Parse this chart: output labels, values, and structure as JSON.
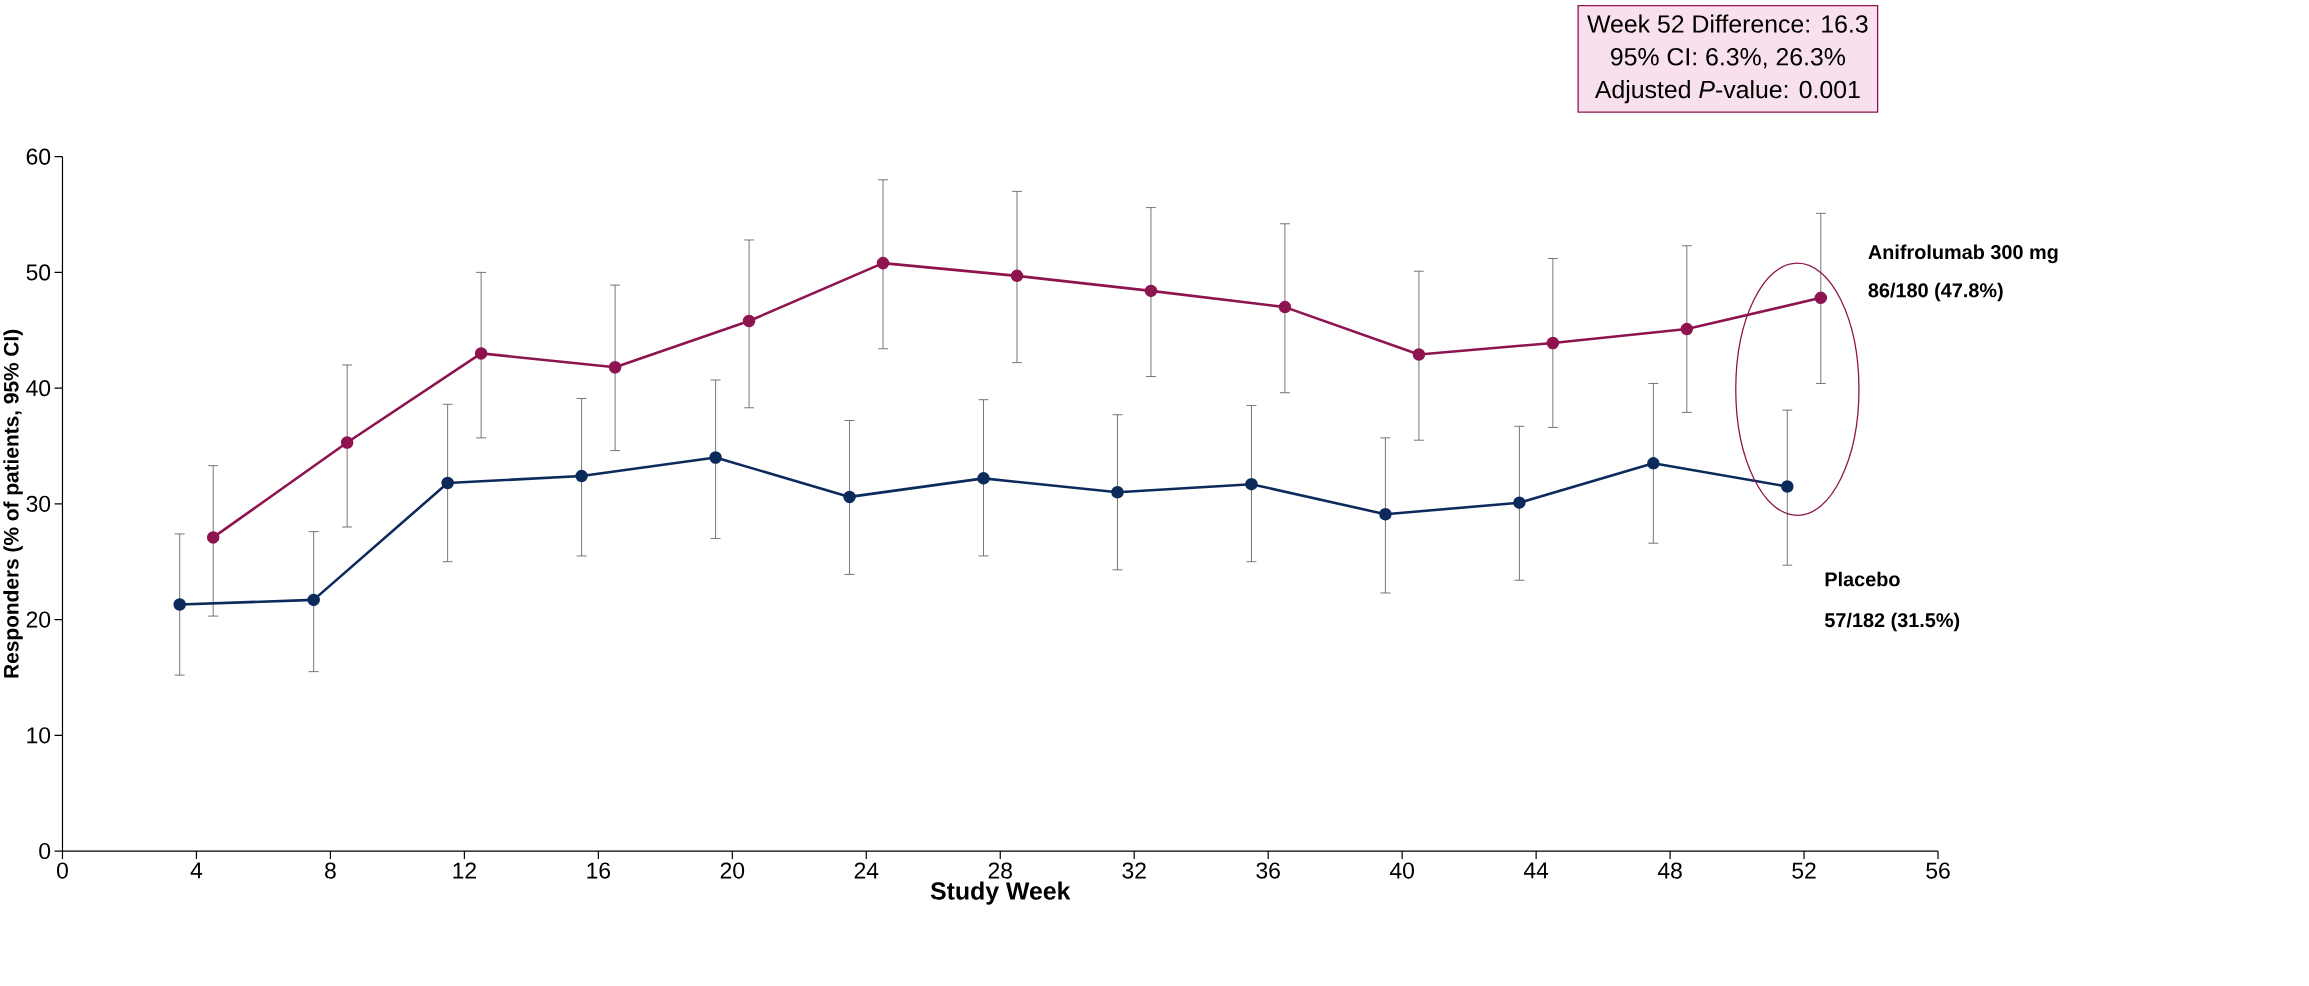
{
  "chart_data": {
    "type": "line",
    "xlabel": "Study Week",
    "ylabel": "Responders (% of patients, 95% CI)",
    "xlim": [
      0,
      56
    ],
    "xticks": [
      0,
      4,
      8,
      12,
      16,
      20,
      24,
      28,
      32,
      36,
      40,
      44,
      48,
      52,
      56
    ],
    "ylim": [
      0,
      60
    ],
    "yticks": [
      0,
      10,
      20,
      30,
      40,
      50,
      60
    ],
    "marker": "circle",
    "legend": false,
    "grid": false,
    "series": [
      {
        "name": "Anifrolumab 300 mg",
        "color": "#8e1450",
        "x": [
          4.5,
          8.5,
          12.5,
          16.5,
          20.5,
          24.5,
          28.5,
          32.5,
          36.5,
          40.5,
          44.5,
          48.5,
          52.5
        ],
        "values": [
          27.1,
          35.3,
          43,
          41.8,
          45.8,
          50.8,
          49.7,
          48.4,
          47,
          42.9,
          43.9,
          45.1,
          47.8
        ],
        "errors": [
          [
            20.3,
            33.3
          ],
          [
            28,
            42
          ],
          [
            35.7,
            50
          ],
          [
            34.6,
            48.9
          ],
          [
            38.3,
            52.8
          ],
          [
            43.4,
            58
          ],
          [
            42.2,
            57
          ],
          [
            41,
            55.6
          ],
          [
            39.6,
            54.2
          ],
          [
            35.5,
            50.1
          ],
          [
            36.6,
            51.2
          ],
          [
            37.9,
            52.3
          ],
          [
            40.4,
            55.1
          ]
        ]
      },
      {
        "name": "Placebo",
        "color": "#0d2a5c",
        "x": [
          3.5,
          7.5,
          11.5,
          15.5,
          19.5,
          23.5,
          27.5,
          31.5,
          35.5,
          39.5,
          43.5,
          47.5,
          51.5
        ],
        "values": [
          21.3,
          21.7,
          31.8,
          32.4,
          34,
          30.6,
          32.2,
          31,
          31.7,
          29.1,
          30.1,
          33.5,
          31.5
        ],
        "errors": [
          [
            15.2,
            27.4
          ],
          [
            15.5,
            27.6
          ],
          [
            25,
            38.6
          ],
          [
            25.5,
            39.1
          ],
          [
            27,
            40.7
          ],
          [
            23.9,
            37.2
          ],
          [
            25.5,
            39
          ],
          [
            24.3,
            37.7
          ],
          [
            25,
            38.5
          ],
          [
            22.3,
            35.7
          ],
          [
            23.4,
            36.7
          ],
          [
            26.6,
            40.4
          ],
          [
            24.7,
            38.1
          ]
        ]
      }
    ],
    "annotations": [
      "86/180 (47.8%)",
      "57/182 (31.5%)",
      "Week 52 Difference: 16.3",
      "95% CI: 6.3%, 26.3%",
      "Adjusted *P*-value: 0.001"
    ]
  }
}
